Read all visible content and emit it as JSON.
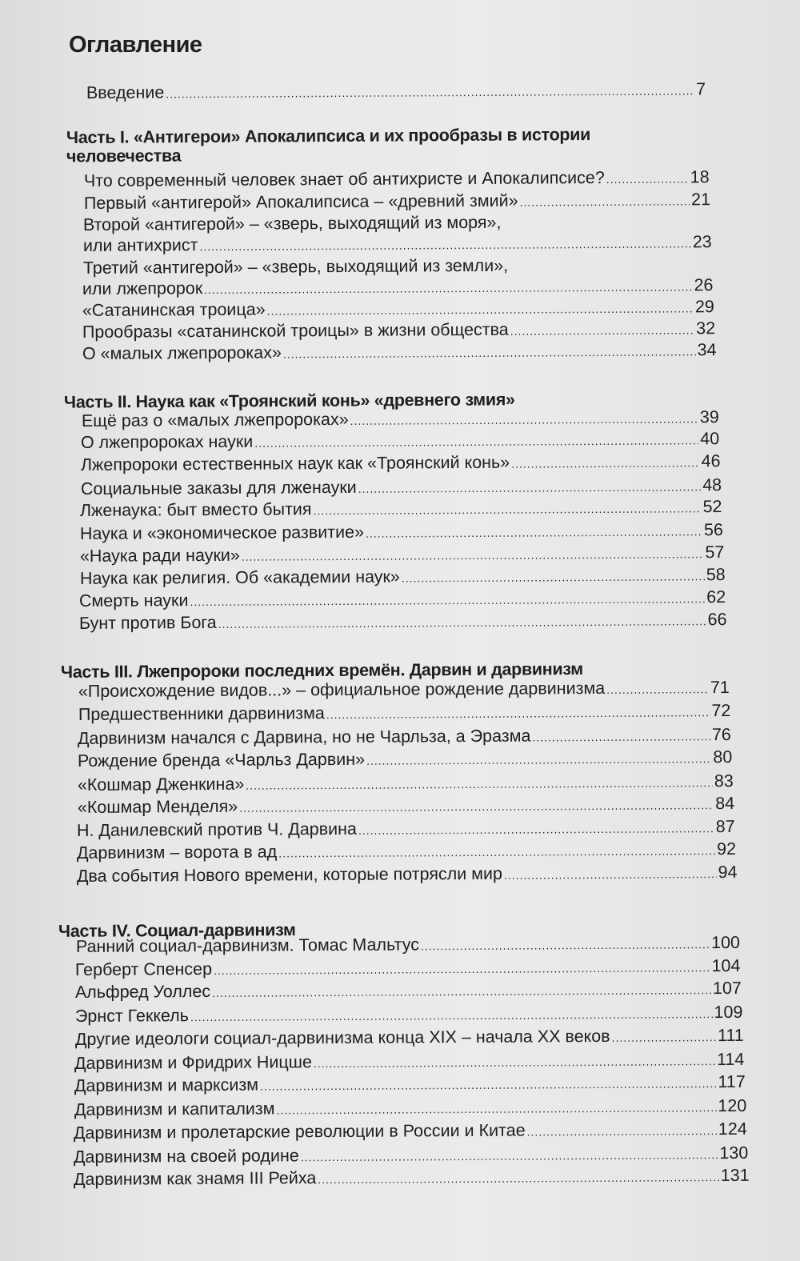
{
  "title": "Оглавление",
  "intro": {
    "lines": [
      "Введение"
    ],
    "page": "7"
  },
  "sections": [
    {
      "heading": [
        "Часть I. «Антигерои» Апокалипсиса и их прообразы в истории",
        "человечества"
      ],
      "entries": [
        {
          "lines": [
            "Что современный человек знает об антихристе и Апокалипсисе?"
          ],
          "page": "18"
        },
        {
          "lines": [
            "Первый «антигерой» Апокалипсиса – «древний змий»"
          ],
          "page": "21"
        },
        {
          "lines": [
            "Второй «антигерой» – «зверь, выходящий из моря»,",
            "или антихрист"
          ],
          "page": "23"
        },
        {
          "lines": [
            "Третий «антигерой» – «зверь, выходящий из земли»,",
            "или лжепророк"
          ],
          "page": "26"
        },
        {
          "lines": [
            " «Сатанинская троица»"
          ],
          "page": "29"
        },
        {
          "lines": [
            "Прообразы «сатанинской троицы» в жизни общества"
          ],
          "page": "32"
        },
        {
          "lines": [
            "О «малых лжепророках»"
          ],
          "page": "34"
        }
      ]
    },
    {
      "heading": [
        "Часть II. Наука как «Троянский конь» «древнего змия»"
      ],
      "entries": [
        {
          "lines": [
            "Ещё раз о «малых лжепророках»"
          ],
          "page": "39"
        },
        {
          "lines": [
            "О лжепророках науки"
          ],
          "page": "40"
        },
        {
          "lines": [
            "Лжепророки естественных наук как «Троянский конь»"
          ],
          "page": "46"
        },
        {
          "lines": [
            "Социальные заказы для лженауки"
          ],
          "page": "48"
        },
        {
          "lines": [
            "Лженаука: быт вместо бытия"
          ],
          "page": "52"
        },
        {
          "lines": [
            "Наука и «экономическое развитие»"
          ],
          "page": "56"
        },
        {
          "lines": [
            "«Наука ради науки»"
          ],
          "page": "57"
        },
        {
          "lines": [
            "Наука как религия. Об «академии наук»"
          ],
          "page": "58"
        },
        {
          "lines": [
            "Смерть науки"
          ],
          "page": "62"
        },
        {
          "lines": [
            "Бунт против Бога"
          ],
          "page": "66"
        }
      ]
    },
    {
      "heading": [
        "Часть III. Лжепророки последних времён. Дарвин и дарвинизм"
      ],
      "entries": [
        {
          "lines": [
            "«Происхождение видов...» – официальное рождение дарвинизма"
          ],
          "page": "71"
        },
        {
          "lines": [
            "Предшественники дарвинизма"
          ],
          "page": "72"
        },
        {
          "lines": [
            "Дарвинизм начался с Дарвина, но не Чарльза, а Эразма"
          ],
          "page": "76"
        },
        {
          "lines": [
            "Рождение бренда «Чарльз Дарвин»"
          ],
          "page": "80"
        },
        {
          "lines": [
            "«Кошмар Дженкина»"
          ],
          "page": "83"
        },
        {
          "lines": [
            "«Кошмар Менделя»"
          ],
          "page": "84"
        },
        {
          "lines": [
            "Н. Данилевский против Ч. Дарвина"
          ],
          "page": "87"
        },
        {
          "lines": [
            "Дарвинизм – ворота в ад"
          ],
          "page": "92"
        },
        {
          "lines": [
            "Два события Нового времени, которые потрясли мир"
          ],
          "page": "94"
        }
      ]
    },
    {
      "heading": [
        "Часть IV. Социал-дарвинизм"
      ],
      "entries": [
        {
          "lines": [
            "Ранний социал-дарвинизм. Томас Мальтус"
          ],
          "page": "100"
        },
        {
          "lines": [
            "Герберт Спенсер "
          ],
          "page": "104"
        },
        {
          "lines": [
            "Альфред Уоллес"
          ],
          "page": "107"
        },
        {
          "lines": [
            "Эрнст Геккель "
          ],
          "page": "109"
        },
        {
          "lines": [
            "Другие идеологи социал-дарвинизма конца XIX – начала XX веков"
          ],
          "page": "111"
        },
        {
          "lines": [
            "Дарвинизм и Фридрих Ницше"
          ],
          "page": "114"
        },
        {
          "lines": [
            "Дарвинизм и марксизм"
          ],
          "page": "117"
        },
        {
          "lines": [
            "Дарвинизм и капитализм "
          ],
          "page": "120"
        },
        {
          "lines": [
            "Дарвинизм и пролетарские революции в России и Китае "
          ],
          "page": "124"
        },
        {
          "lines": [
            "Дарвинизм на своей родине"
          ],
          "page": "130"
        },
        {
          "lines": [
            "Дарвинизм как знамя III Рейха"
          ],
          "page": "131"
        }
      ]
    }
  ]
}
